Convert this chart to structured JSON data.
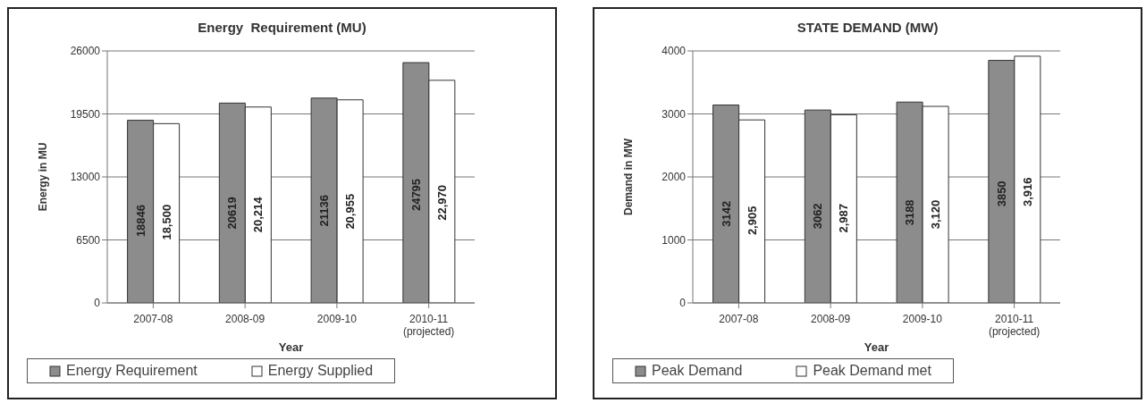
{
  "chart_data": [
    {
      "type": "bar",
      "title": "Energy  Requirement (MU)",
      "xlabel": "Year",
      "ylabel": "Energy in MU",
      "categories": [
        "2007-08",
        "2008-09",
        "2009-10",
        "2010-11\n(projected)"
      ],
      "series": [
        {
          "name": "Energy Requirement",
          "color": "#8c8c8c",
          "values": [
            18846,
            20619,
            21136,
            24795
          ],
          "value_labels": [
            "18846",
            "20619",
            "21136",
            "24795"
          ]
        },
        {
          "name": "Energy Supplied",
          "color": "#ffffff",
          "values": [
            18500,
            20214,
            20955,
            22970
          ],
          "value_labels": [
            "18,500",
            "20,214",
            "20,955",
            "22,970"
          ]
        }
      ],
      "ylim": [
        0,
        26000
      ],
      "yticks": [
        0,
        6500,
        13000,
        19500,
        26000
      ],
      "grid": "y",
      "legend": "bottom"
    },
    {
      "type": "bar",
      "title": "STATE DEMAND (MW)",
      "xlabel": "Year",
      "ylabel": "Demand in MW",
      "categories": [
        "2007-08",
        "2008-09",
        "2009-10",
        "2010-11\n(projected)"
      ],
      "series": [
        {
          "name": "Peak Demand",
          "color": "#8c8c8c",
          "values": [
            3142,
            3062,
            3188,
            3850
          ],
          "value_labels": [
            "3142",
            "3062",
            "3188",
            "3850"
          ]
        },
        {
          "name": "Peak Demand met",
          "color": "#ffffff",
          "values": [
            2905,
            2987,
            3120,
            3916
          ],
          "value_labels": [
            "2,905",
            "2,987",
            "3,120",
            "3,916"
          ]
        }
      ],
      "ylim": [
        0,
        4000
      ],
      "yticks": [
        0,
        1000,
        2000,
        3000,
        4000
      ],
      "grid": "y",
      "legend": "bottom"
    }
  ]
}
